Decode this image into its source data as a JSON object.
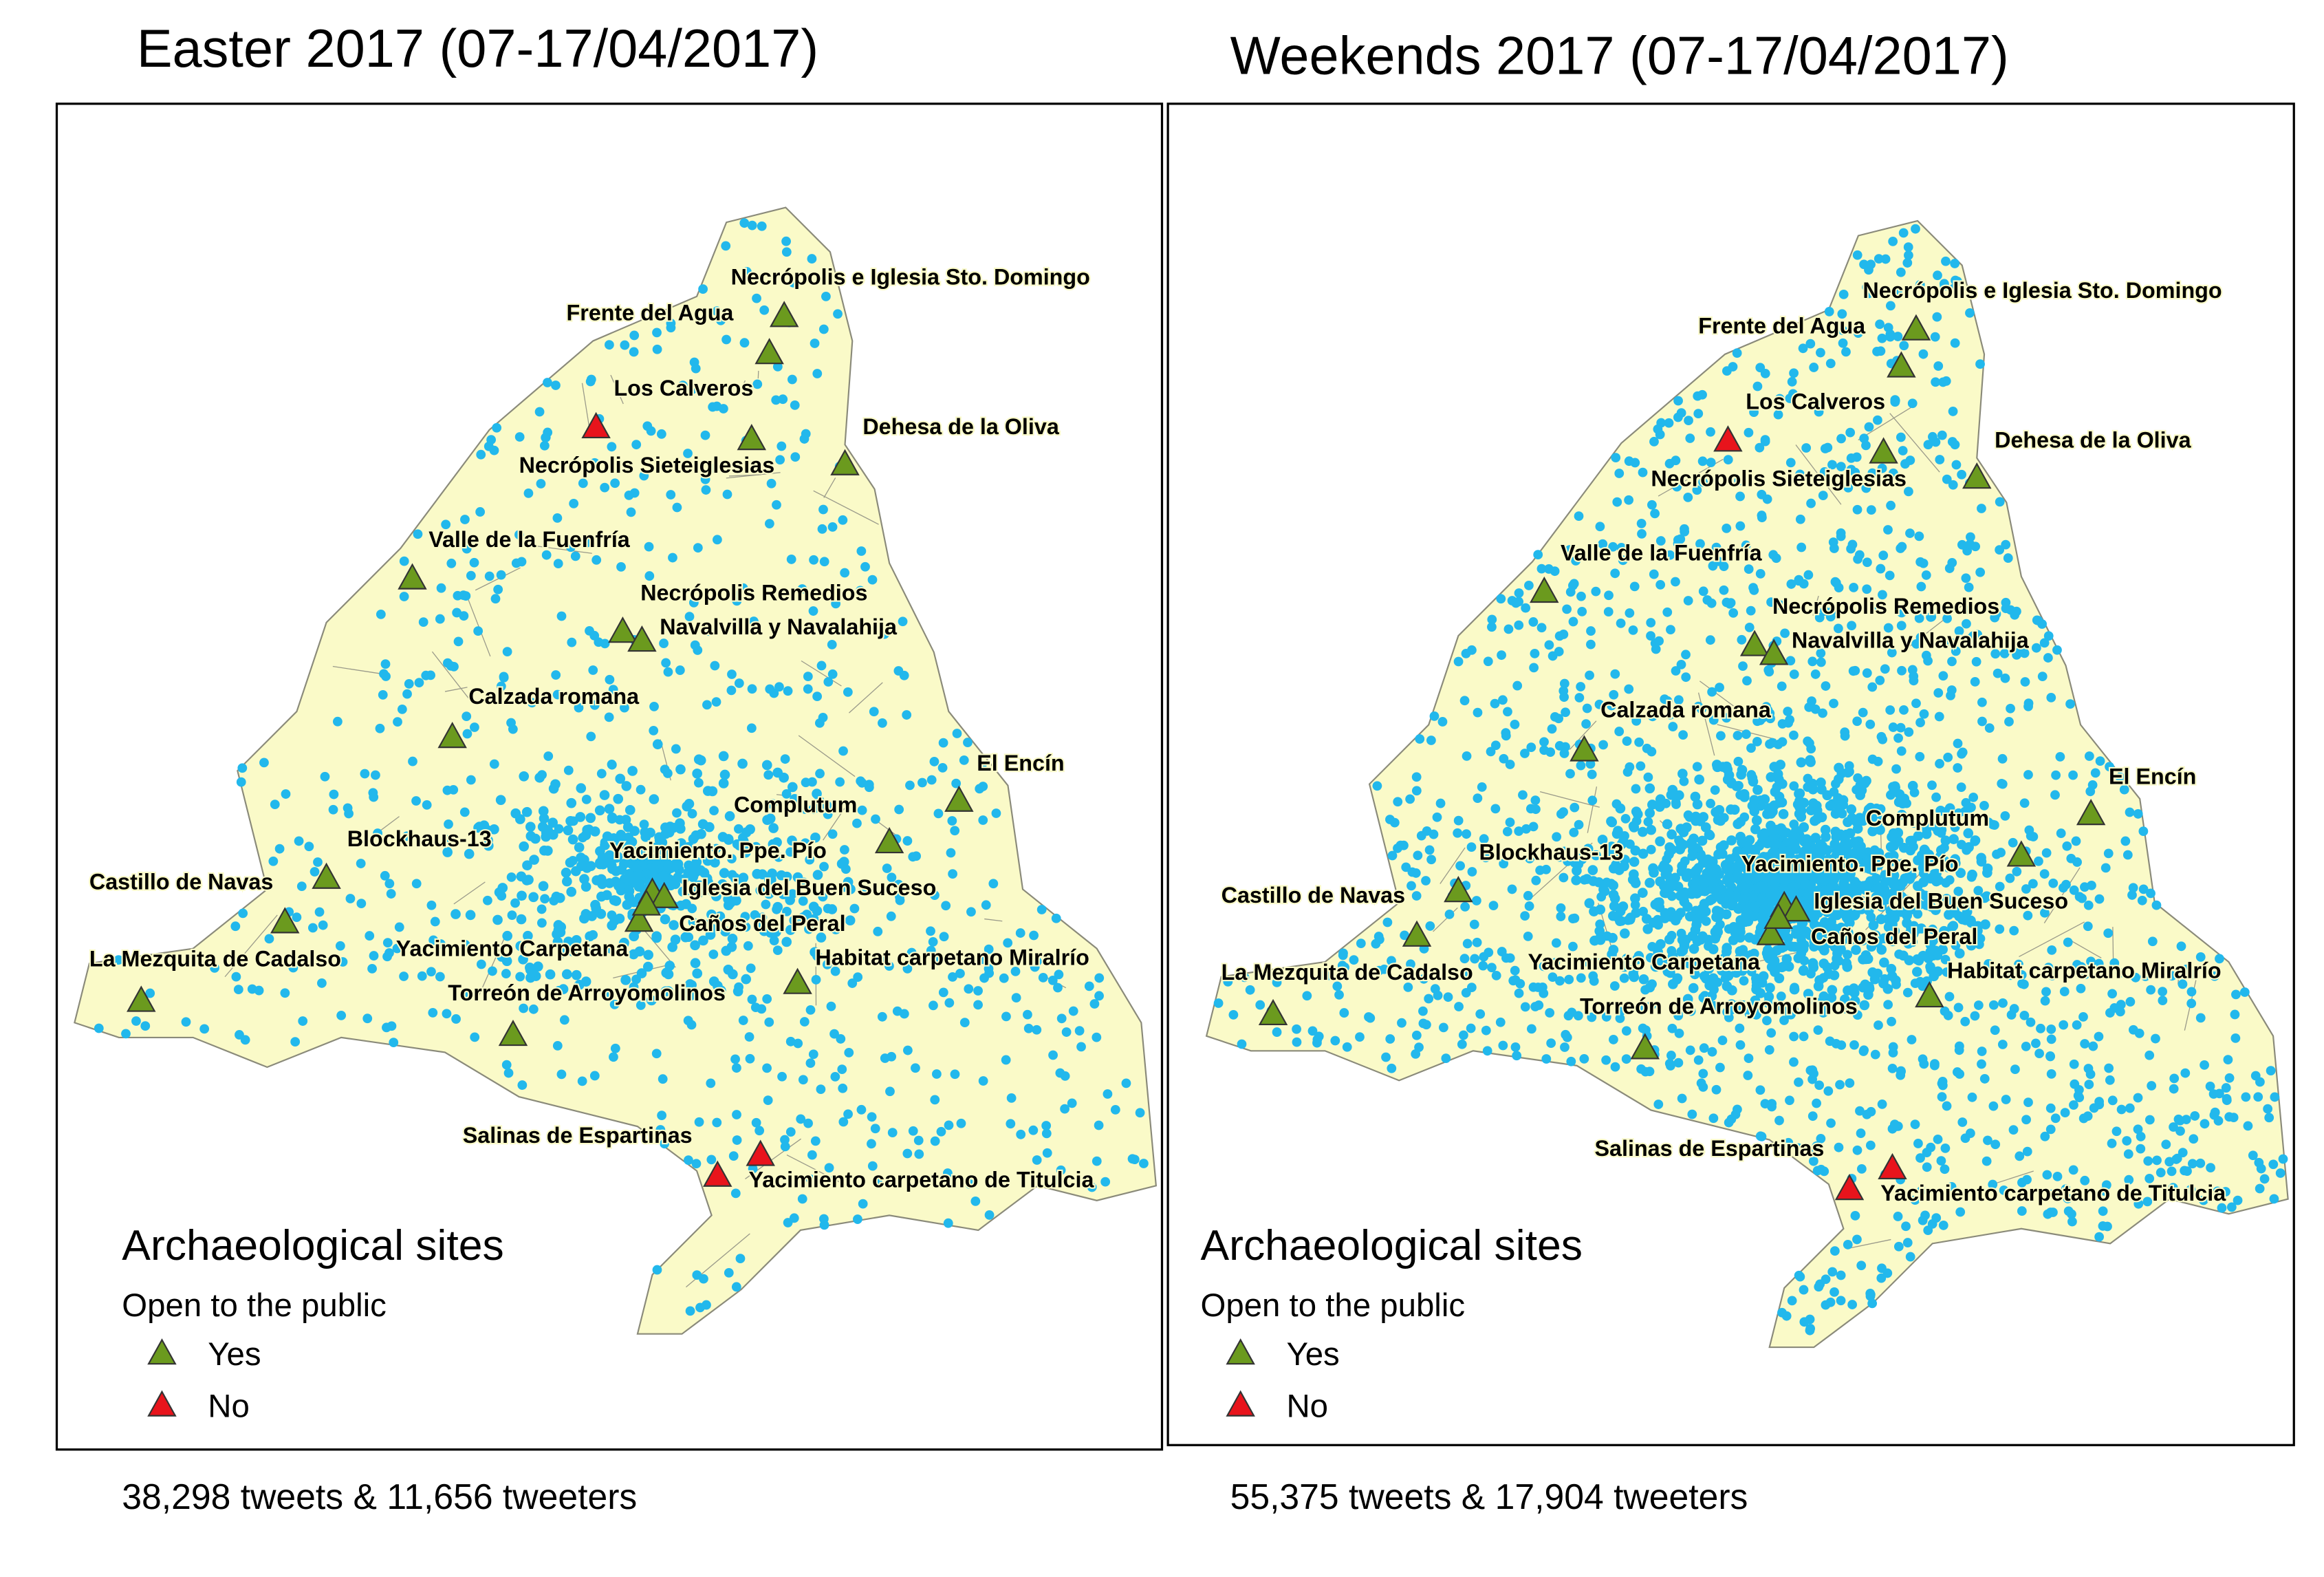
{
  "panels": [
    {
      "title": "Easter 2017 (07-17/04/2017)",
      "caption": "38,298 tweets & 11,656 tweeters",
      "legend": {
        "title": "Archaeological sites",
        "subtitle": "Open to the public",
        "items": [
          {
            "label": "Yes",
            "color": "#6b9a1e"
          },
          {
            "label": "No",
            "color": "#e8141c"
          }
        ]
      },
      "sites": [
        {
          "label": "Necrópolis e Iglesia Sto. Domingo",
          "open": "Yes"
        },
        {
          "label": "Frente del Agua",
          "open": "Yes"
        },
        {
          "label": "Los Calveros",
          "open": "No"
        },
        {
          "label": "Dehesa de la Oliva",
          "open": "Yes"
        },
        {
          "label": "Necrópolis Sieteiglesias",
          "open": "Yes"
        },
        {
          "label": "Valle de la Fuenfría",
          "open": "Yes"
        },
        {
          "label": "Necrópolis Remedios",
          "open": "Yes"
        },
        {
          "label": "Navalvilla y Navalahija",
          "open": "Yes"
        },
        {
          "label": "Calzada romana",
          "open": "Yes"
        },
        {
          "label": "El Encín",
          "open": "Yes"
        },
        {
          "label": "Complutum",
          "open": "Yes"
        },
        {
          "label": "Blockhaus-13",
          "open": "Yes"
        },
        {
          "label": "Yacimiento. Ppe. Pío",
          "open": "Yes"
        },
        {
          "label": "Castillo de Navas",
          "open": "Yes"
        },
        {
          "label": "Iglesia del Buen Suceso",
          "open": "Yes"
        },
        {
          "label": "Caños del Peral",
          "open": "Yes"
        },
        {
          "label": "Yacimiento Carpetana",
          "open": "Yes"
        },
        {
          "label": "Habitat carpetano Miralrío",
          "open": "Yes"
        },
        {
          "label": "La Mezquita de Cadalso",
          "open": "Yes"
        },
        {
          "label": "Torreón de Arroyomolinos",
          "open": "Yes"
        },
        {
          "label": "Salinas de Espartinas",
          "open": "No"
        },
        {
          "label": "Yacimiento carpetano de Titulcia",
          "open": "No"
        }
      ]
    },
    {
      "title": "Weekends 2017 (07-17/04/2017)",
      "caption": "55,375 tweets & 17,904 tweeters",
      "legend": {
        "title": "Archaeological sites",
        "subtitle": "Open to the public",
        "items": [
          {
            "label": "Yes",
            "color": "#6b9a1e"
          },
          {
            "label": "No",
            "color": "#e8141c"
          }
        ]
      },
      "sites": [
        {
          "label": "Necrópolis e Iglesia Sto. Domingo",
          "open": "Yes"
        },
        {
          "label": "Frente del Agua",
          "open": "Yes"
        },
        {
          "label": "Los Calveros",
          "open": "No"
        },
        {
          "label": "Dehesa de la Oliva",
          "open": "Yes"
        },
        {
          "label": "Necrópolis Sieteiglesias",
          "open": "Yes"
        },
        {
          "label": "Valle de la Fuenfría",
          "open": "Yes"
        },
        {
          "label": "Necrópolis Remedios",
          "open": "Yes"
        },
        {
          "label": "Navalvilla y Navalahija",
          "open": "Yes"
        },
        {
          "label": "Calzada romana",
          "open": "Yes"
        },
        {
          "label": "El Encín",
          "open": "Yes"
        },
        {
          "label": "Complutum",
          "open": "Yes"
        },
        {
          "label": "Blockhaus-13",
          "open": "Yes"
        },
        {
          "label": "Yacimiento. Ppe. Pío",
          "open": "Yes"
        },
        {
          "label": "Castillo de Navas",
          "open": "Yes"
        },
        {
          "label": "Iglesia del Buen Suceso",
          "open": "Yes"
        },
        {
          "label": "Caños del Peral",
          "open": "Yes"
        },
        {
          "label": "Yacimiento Carpetana",
          "open": "Yes"
        },
        {
          "label": "Habitat carpetano Miralrío",
          "open": "Yes"
        },
        {
          "label": "La Mezquita de Cadalso",
          "open": "Yes"
        },
        {
          "label": "Torreón de Arroyomolinos",
          "open": "Yes"
        },
        {
          "label": "Salinas de Espartinas",
          "open": "No"
        },
        {
          "label": "Yacimiento carpetano de Titulcia",
          "open": "No"
        }
      ]
    }
  ]
}
